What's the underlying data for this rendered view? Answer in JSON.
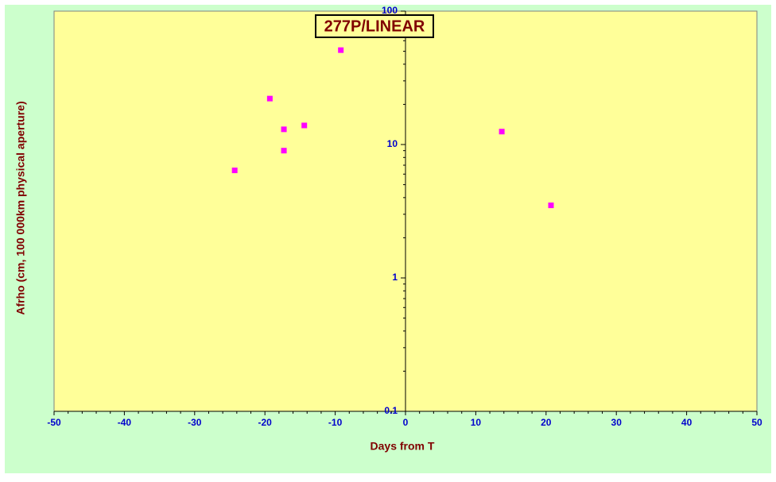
{
  "chart_data": {
    "type": "scatter",
    "title": "277P/LINEAR",
    "x_label": "Days from T",
    "y_label": "Afrho (cm, 100 000km physical aperture)",
    "x": [
      -24.3,
      -19.3,
      -17.3,
      -17.3,
      -14.4,
      -9.2,
      13.7,
      20.7
    ],
    "values": [
      6.4,
      22.1,
      13.0,
      9.0,
      13.9,
      51,
      12.5,
      3.5
    ],
    "color": "#ff00ff",
    "xlim": [
      -50,
      50
    ],
    "xticks": [
      -50,
      -40,
      -30,
      -20,
      -10,
      0,
      10,
      20,
      30,
      40,
      50
    ],
    "ylim": [
      0.1,
      100
    ],
    "yticks": [
      0.1,
      1,
      10,
      100
    ],
    "ylog": true,
    "grid": false
  }
}
